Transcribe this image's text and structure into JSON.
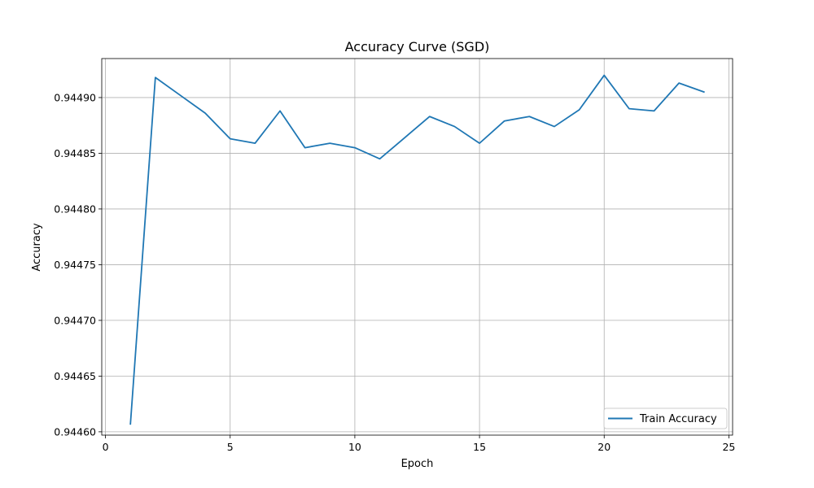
{
  "chart_data": {
    "type": "line",
    "title": "Accuracy Curve (SGD)",
    "xlabel": "Epoch",
    "ylabel": "Accuracy",
    "xlim": [
      -0.15,
      25.15
    ],
    "ylim": [
      0.944597,
      0.944935
    ],
    "xticks": [
      0,
      5,
      10,
      15,
      20,
      25
    ],
    "yticks": [
      0.9446,
      0.94465,
      0.9447,
      0.94475,
      0.9448,
      0.94485,
      0.9449
    ],
    "ytick_labels": [
      "0.94460",
      "0.94465",
      "0.94470",
      "0.94475",
      "0.94480",
      "0.94485",
      "0.94490"
    ],
    "grid": true,
    "legend_position": "lower-right",
    "series_color": "#1f77b4",
    "series": [
      {
        "name": "Train Accuracy",
        "x": [
          1,
          2,
          3,
          4,
          5,
          6,
          7,
          8,
          9,
          10,
          11,
          12,
          13,
          14,
          15,
          16,
          17,
          18,
          19,
          20,
          21,
          22,
          23,
          24
        ],
        "values": [
          0.944607,
          0.944918,
          0.944902,
          0.944886,
          0.944863,
          0.944859,
          0.944888,
          0.944855,
          0.944859,
          0.944855,
          0.944845,
          0.944864,
          0.944883,
          0.944874,
          0.944859,
          0.944879,
          0.944883,
          0.944874,
          0.944889,
          0.94492,
          0.94489,
          0.944888,
          0.944913,
          0.944905
        ]
      }
    ]
  }
}
